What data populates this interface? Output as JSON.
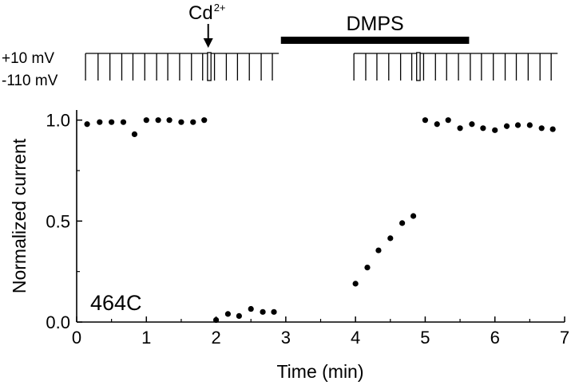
{
  "chart_data": {
    "type": "scatter",
    "xlabel": "Time (min)",
    "ylabel": "Normalized current",
    "xlim": [
      0,
      7
    ],
    "ylim": [
      0,
      1.05
    ],
    "xticks": [
      "0",
      "1",
      "2",
      "3",
      "4",
      "5",
      "6",
      "7"
    ],
    "yticks": [
      "0.0",
      "0.5",
      "1.0"
    ],
    "annotation": "464C",
    "series": [
      {
        "points": [
          [
            0.15,
            0.98
          ],
          [
            0.33,
            0.99
          ],
          [
            0.5,
            0.99
          ],
          [
            0.67,
            0.99
          ],
          [
            0.83,
            0.93
          ],
          [
            1.0,
            1.0
          ],
          [
            1.17,
            1.0
          ],
          [
            1.33,
            1.0
          ],
          [
            1.5,
            0.99
          ],
          [
            1.67,
            0.99
          ],
          [
            1.83,
            1.0
          ],
          [
            2.0,
            0.01
          ],
          [
            2.17,
            0.04
          ],
          [
            2.33,
            0.03
          ],
          [
            2.5,
            0.065
          ],
          [
            2.67,
            0.05
          ],
          [
            2.83,
            0.05
          ],
          [
            4.0,
            0.19
          ],
          [
            4.17,
            0.27
          ],
          [
            4.33,
            0.355
          ],
          [
            4.5,
            0.415
          ],
          [
            4.67,
            0.49
          ],
          [
            4.83,
            0.525
          ],
          [
            5.0,
            1.0
          ],
          [
            5.17,
            0.98
          ],
          [
            5.33,
            1.0
          ],
          [
            5.5,
            0.96
          ],
          [
            5.67,
            0.98
          ],
          [
            5.83,
            0.96
          ],
          [
            6.0,
            0.95
          ],
          [
            6.17,
            0.97
          ],
          [
            6.33,
            0.975
          ],
          [
            6.5,
            0.975
          ],
          [
            6.67,
            0.96
          ],
          [
            6.83,
            0.955
          ]
        ]
      }
    ],
    "protocol": {
      "levels": [
        "+10 mV",
        "-110 mV"
      ],
      "pulse_times": [
        0.15,
        0.33,
        0.5,
        0.67,
        0.83,
        1.0,
        1.17,
        1.33,
        1.5,
        1.67,
        1.83,
        2.0,
        2.17,
        2.33,
        2.5,
        2.67,
        2.83,
        4.0,
        4.17,
        4.33,
        4.5,
        4.67,
        4.83,
        5.0,
        5.17,
        5.33,
        5.5,
        5.67,
        5.83,
        6.0,
        6.17,
        6.33,
        6.5,
        6.67,
        6.83
      ],
      "hold_gaps": [
        [
          1.9,
          1.95
        ],
        [
          4.9,
          4.95
        ]
      ],
      "trace_segments": [
        [
          0.15,
          2.9
        ],
        [
          4.0,
          6.9
        ]
      ],
      "cd_label": "Cd",
      "cd_superscript": "2+",
      "cd_time": 1.91,
      "dmps_label": "DMPS",
      "dmps_start": 2.93,
      "dmps_end": 5.63
    }
  }
}
